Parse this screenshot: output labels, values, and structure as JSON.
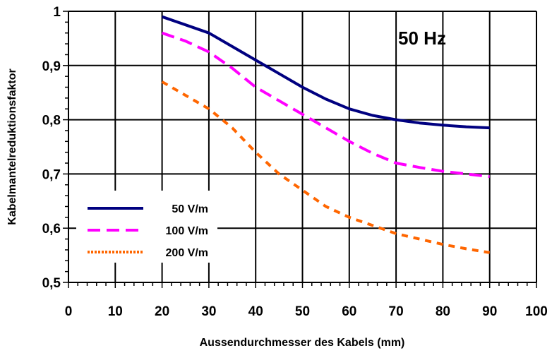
{
  "chart_data": {
    "type": "line",
    "annotation": "50 Hz",
    "xlabel": "Aussendurchmesser des Kabels (mm)",
    "ylabel": "Kabelmantelreduktionsfaktor",
    "xlim": [
      0,
      100
    ],
    "ylim": [
      0.5,
      1
    ],
    "x_ticks": [
      0,
      10,
      20,
      30,
      40,
      50,
      60,
      70,
      80,
      90,
      100
    ],
    "x_tick_labels": [
      "0",
      "10",
      "20",
      "30",
      "40",
      "50",
      "60",
      "70",
      "80",
      "90",
      "100"
    ],
    "y_ticks": [
      0.5,
      0.6,
      0.7,
      0.8,
      0.9,
      1.0
    ],
    "y_tick_labels": [
      "0,5",
      "0,6",
      "0,7",
      "0,8",
      "0,9",
      "1"
    ],
    "grid": true,
    "legend_position": "lower-left",
    "series": [
      {
        "name": "50 V/m",
        "color": "#000080",
        "style": "solid",
        "x": [
          20,
          25,
          30,
          35,
          40,
          45,
          50,
          55,
          60,
          65,
          70,
          75,
          80,
          85,
          90
        ],
        "y": [
          0.99,
          0.975,
          0.96,
          0.935,
          0.91,
          0.885,
          0.86,
          0.838,
          0.82,
          0.808,
          0.8,
          0.794,
          0.79,
          0.787,
          0.785
        ]
      },
      {
        "name": "100 V/m",
        "color": "#ff00ff",
        "style": "dashed",
        "x": [
          20,
          25,
          30,
          35,
          40,
          45,
          50,
          55,
          60,
          65,
          70,
          75,
          80,
          85,
          90
        ],
        "y": [
          0.96,
          0.945,
          0.925,
          0.895,
          0.86,
          0.835,
          0.81,
          0.785,
          0.76,
          0.738,
          0.72,
          0.712,
          0.705,
          0.7,
          0.695
        ]
      },
      {
        "name": "200 V/m",
        "color": "#ff6600",
        "style": "dotted",
        "x": [
          20,
          25,
          30,
          35,
          40,
          45,
          50,
          55,
          60,
          65,
          70,
          75,
          80,
          85,
          90
        ],
        "y": [
          0.87,
          0.845,
          0.82,
          0.785,
          0.74,
          0.7,
          0.67,
          0.64,
          0.62,
          0.605,
          0.59,
          0.58,
          0.57,
          0.562,
          0.555
        ]
      }
    ]
  }
}
